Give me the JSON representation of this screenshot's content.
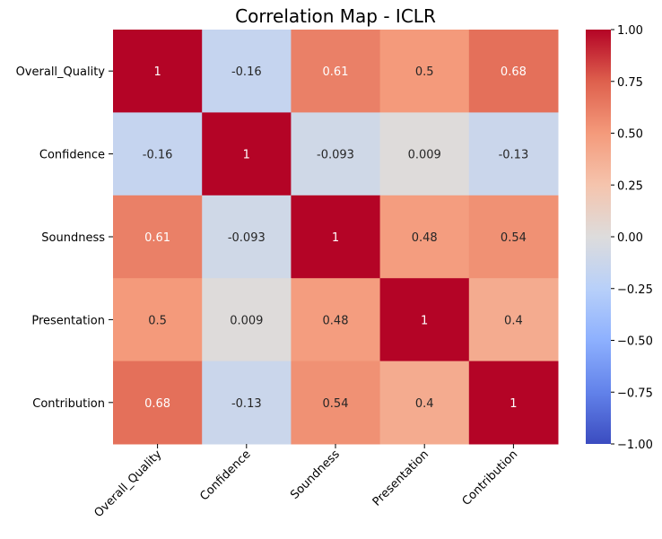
{
  "chart_data": {
    "type": "heatmap",
    "title": "Correlation Map - ICLR",
    "xlabel": "",
    "ylabel": "",
    "x_categories": [
      "Overall_Quality",
      "Confidence",
      "Soundness",
      "Presentation",
      "Contribution"
    ],
    "y_categories": [
      "Overall_Quality",
      "Confidence",
      "Soundness",
      "Presentation",
      "Contribution"
    ],
    "values": [
      [
        1,
        -0.16,
        0.61,
        0.5,
        0.68
      ],
      [
        -0.16,
        1,
        -0.093,
        0.009,
        -0.13
      ],
      [
        0.61,
        -0.093,
        1,
        0.48,
        0.54
      ],
      [
        0.5,
        0.009,
        0.48,
        1,
        0.4
      ],
      [
        0.68,
        -0.13,
        0.54,
        0.4,
        1
      ]
    ],
    "labels": [
      [
        "1",
        "-0.16",
        "0.61",
        "0.5",
        "0.68"
      ],
      [
        "-0.16",
        "1",
        "-0.093",
        "0.009",
        "-0.13"
      ],
      [
        "0.61",
        "-0.093",
        "1",
        "0.48",
        "0.54"
      ],
      [
        "0.5",
        "0.009",
        "0.48",
        "1",
        "0.4"
      ],
      [
        "0.68",
        "-0.13",
        "0.54",
        "0.4",
        "1"
      ]
    ],
    "colorbar": {
      "range": [
        -1,
        1
      ],
      "ticks": [
        "1.00",
        "0.75",
        "0.50",
        "0.25",
        "0.00",
        "−0.25",
        "−0.50",
        "−0.75",
        "−1.00"
      ],
      "tick_values": [
        1,
        0.75,
        0.5,
        0.25,
        0,
        -0.25,
        -0.5,
        -0.75,
        -1
      ],
      "colormap": "coolwarm"
    },
    "grid": false
  }
}
